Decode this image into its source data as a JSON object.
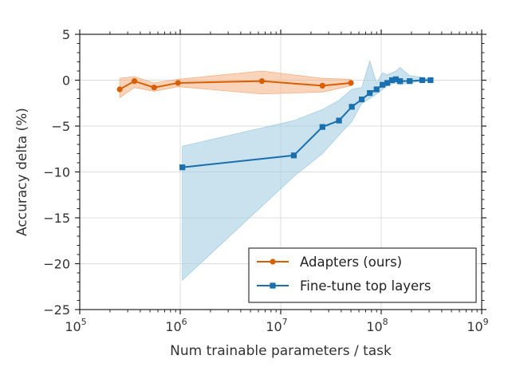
{
  "chart_data": {
    "type": "line",
    "title": "",
    "xlabel": "Num trainable parameters / task",
    "ylabel": "Accuracy delta (%)",
    "xscale": "log",
    "xlim": [
      100000,
      1000000000
    ],
    "ylim": [
      -25,
      5
    ],
    "x_ticks": [
      {
        "value": 100000,
        "base": "10",
        "exp": "5"
      },
      {
        "value": 1000000,
        "base": "10",
        "exp": "6"
      },
      {
        "value": 10000000,
        "base": "10",
        "exp": "7"
      },
      {
        "value": 100000000,
        "base": "10",
        "exp": "8"
      },
      {
        "value": 1000000000,
        "base": "10",
        "exp": "9"
      }
    ],
    "y_ticks": [
      {
        "value": 5,
        "label": "5"
      },
      {
        "value": 0,
        "label": "0"
      },
      {
        "value": -5,
        "label": "−5"
      },
      {
        "value": -10,
        "label": "−10"
      },
      {
        "value": -15,
        "label": "−15"
      },
      {
        "value": -20,
        "label": "−20"
      },
      {
        "value": -25,
        "label": "−25"
      }
    ],
    "grid": true,
    "legend_position": "bottom-right",
    "series": [
      {
        "name": "Adapters (ours)",
        "color": "#d95f02",
        "fill_color": "#f4b183",
        "marker": "circle",
        "x": [
          250000,
          350000,
          550000,
          950000,
          6500000,
          26000000,
          50000000
        ],
        "y": [
          -1.0,
          -0.1,
          -0.8,
          -0.3,
          -0.1,
          -0.6,
          -0.3
        ],
        "band_lower": [
          -1.9,
          -0.8,
          -1.2,
          -0.7,
          -1.5,
          -1.3,
          -0.6
        ],
        "band_upper": [
          0.2,
          0.4,
          -0.3,
          0.1,
          1.0,
          0.2,
          0.1
        ]
      },
      {
        "name": "Fine-tune top layers",
        "color": "#1a6faf",
        "fill_color": "#a6cee3",
        "marker": "square",
        "x": [
          1050000,
          13500000,
          26000000,
          38000000,
          51000000,
          64000000,
          77000000,
          90000000,
          103000000,
          115000000,
          128000000,
          140000000,
          154000000,
          192000000,
          256000000,
          310000000
        ],
        "y": [
          -9.5,
          -8.2,
          -5.1,
          -4.4,
          -2.9,
          -2.1,
          -1.4,
          -1.0,
          -0.5,
          -0.3,
          0.0,
          0.1,
          -0.1,
          -0.1,
          0.0,
          0.0
        ],
        "band_lower": [
          -21.8,
          -10.5,
          -8.0,
          -6.0,
          -4.5,
          -2.5,
          -2.0,
          -1.5,
          -1.0,
          -0.6,
          -0.4,
          -0.3,
          -0.5,
          -0.3,
          -0.1,
          -0.1
        ],
        "band_upper": [
          -7.2,
          -4.4,
          -3.2,
          -2.2,
          -1.0,
          -0.8,
          2.1,
          -0.3,
          0.8,
          0.6,
          0.8,
          1.0,
          1.4,
          0.5,
          0.3,
          0.1
        ]
      }
    ]
  }
}
